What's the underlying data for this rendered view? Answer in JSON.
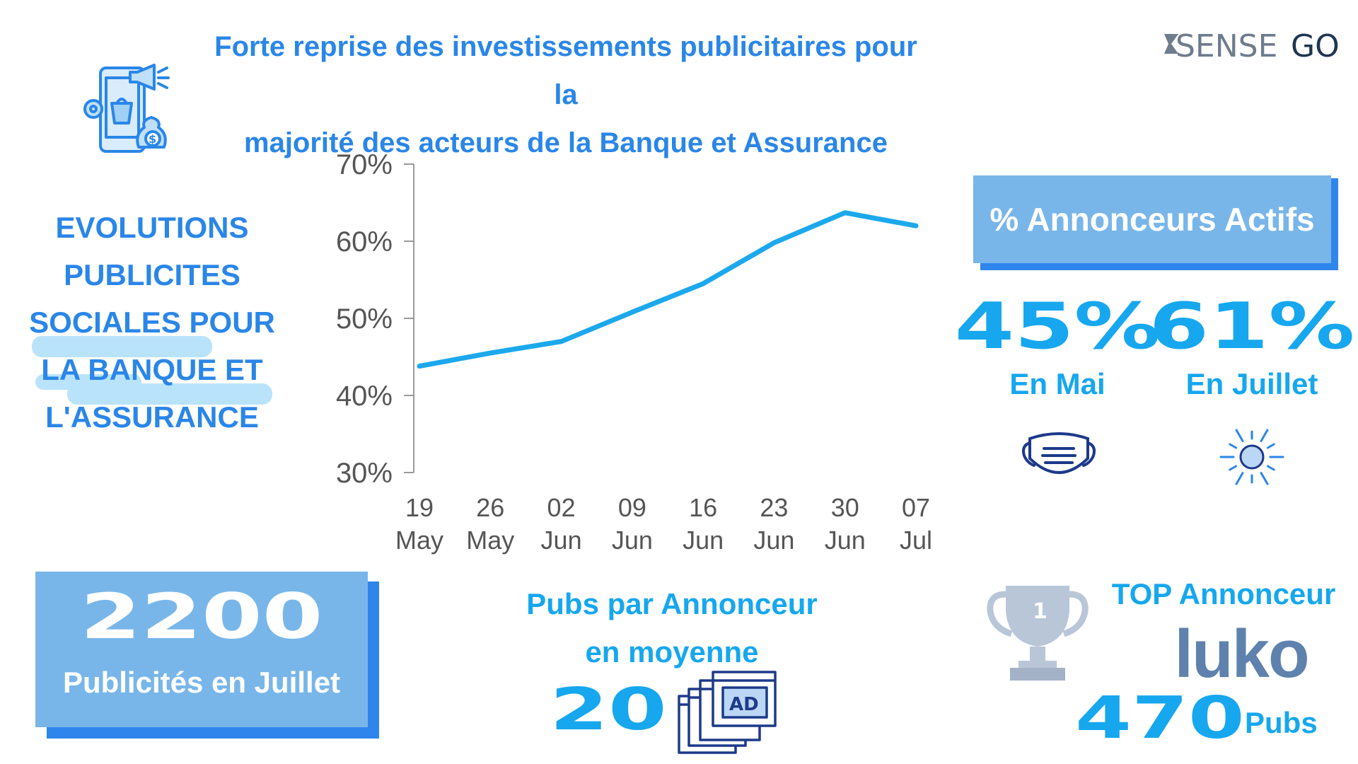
{
  "header": {
    "title_line1": "Forte reprise des investissements publicitaires pour la",
    "title_line2": "majorité des acteurs de la Banque et Assurance",
    "logo_left": "SENSE",
    "logo_right": "GO"
  },
  "left": {
    "heading_lines": [
      "EVOLUTIONS",
      "PUBLICITES",
      "SOCIALES POUR",
      "LA BANQUE ET",
      "L'ASSURANCE"
    ],
    "icon": "mobile-marketing-icon"
  },
  "chart_data": {
    "type": "line",
    "x": [
      "19 May",
      "26 May",
      "02 Jun",
      "09 Jun",
      "16 Jun",
      "23 Jun",
      "30 Jun",
      "07 Jul"
    ],
    "x_tick_top": [
      "19",
      "26",
      "02",
      "09",
      "16",
      "23",
      "30",
      "07"
    ],
    "x_tick_bottom": [
      "May",
      "May",
      "Jun",
      "Jun",
      "Jun",
      "Jun",
      "Jun",
      "Jul"
    ],
    "series": [
      {
        "values": [
          43.8,
          45.5,
          47.0,
          50.8,
          54.5,
          59.8,
          63.7,
          62.0
        ]
      }
    ],
    "ylim": [
      30,
      70
    ],
    "yticks": [
      30,
      40,
      50,
      60,
      70
    ],
    "ytick_labels": [
      "30%",
      "40%",
      "50%",
      "60%",
      "70%"
    ],
    "line_color": "#1ca8ec",
    "grid": false
  },
  "active": {
    "title": "% Annonceurs Actifs",
    "may_value": "45%",
    "may_label": "En Mai",
    "jul_value": "61%",
    "jul_label": "En Juillet",
    "may_icon": "face-mask-icon",
    "jul_icon": "sun-icon"
  },
  "ads": {
    "count": "2200",
    "label": "Publicités en Juillet"
  },
  "average": {
    "line1": "Pubs par Annonceur",
    "line2": "en moyenne",
    "value": "20",
    "icon": "ad-windows-icon",
    "ad_text": "AD"
  },
  "top": {
    "title": "TOP Annonceur",
    "brand": "luko",
    "value": "470",
    "unit": "Pubs",
    "icon": "trophy-icon",
    "rank": "1"
  },
  "colors": {
    "title_blue": "#2a86e8",
    "accent_cyan": "#16a7ef",
    "panel_blue": "#78b6ea",
    "shadow_blue": "#2e86ec",
    "luko_blue": "#5e82ad"
  }
}
